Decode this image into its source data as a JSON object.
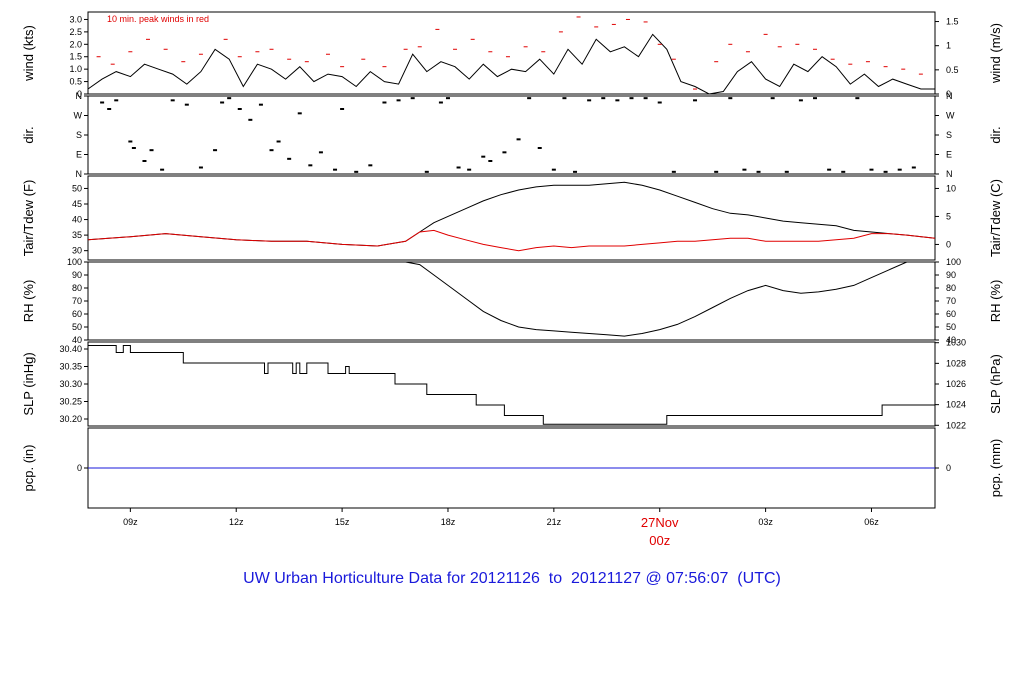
{
  "title": "UW Urban Horticulture Data for 20121126  to  20121127 @ 07:56:07  (UTC)",
  "colors": {
    "title": "#1a1adb",
    "main": "#000000",
    "peak": "#e00000",
    "dew": "#e00000",
    "precip": "#1a1adb",
    "date": "#e00000"
  },
  "chart_data": {
    "type": "line",
    "x_axis": {
      "start_hour": 7.8,
      "end_hour": 31.8,
      "tick_labels": [
        "09z",
        "12z",
        "15z",
        "18z",
        "21z",
        "27Nov",
        "03z",
        "06z"
      ],
      "tick_hours": [
        9,
        12,
        15,
        18,
        21,
        24,
        27,
        30
      ],
      "date_label": "27Nov",
      "date_sublabel": "00z"
    },
    "panels": [
      {
        "id": "wind",
        "ylabel_left": "wind (kts)",
        "ylabel_right": "wind (m/s)",
        "ylim": [
          0,
          3.3
        ],
        "left_ticks": [
          "0",
          "0.5",
          "1.0",
          "1.5",
          "2.0",
          "2.5",
          "3.0"
        ],
        "left_tick_values": [
          0,
          0.5,
          1.0,
          1.5,
          2.0,
          2.5,
          3.0
        ],
        "right_ticks": [
          "0",
          "0.5",
          "1",
          "1.5"
        ],
        "right_tick_values_kts": [
          0,
          0.972,
          1.944,
          2.916
        ],
        "annotation": "10 min. peak winds in red",
        "series": [
          {
            "name": "wind",
            "x": [
              7.8,
              8.2,
              8.6,
              9.0,
              9.4,
              9.8,
              10.2,
              10.6,
              11.0,
              11.4,
              11.8,
              12.2,
              12.6,
              13.0,
              13.4,
              13.8,
              14.2,
              14.6,
              15.0,
              15.4,
              15.8,
              16.2,
              16.6,
              17.0,
              17.4,
              17.8,
              18.2,
              18.6,
              19.0,
              19.4,
              19.8,
              20.2,
              20.6,
              21.0,
              21.4,
              21.8,
              22.2,
              22.6,
              23.0,
              23.4,
              23.8,
              24.2,
              24.6,
              25.0,
              25.4,
              25.8,
              26.2,
              26.6,
              27.0,
              27.4,
              27.8,
              28.2,
              28.6,
              29.0,
              29.4,
              29.8,
              30.2,
              30.6,
              31.0,
              31.4,
              31.8
            ],
            "y": [
              0.2,
              0.6,
              0.9,
              0.7,
              1.2,
              1.0,
              0.8,
              0.4,
              0.9,
              1.8,
              1.4,
              0.3,
              1.2,
              1.0,
              0.6,
              1.1,
              0.5,
              0.8,
              0.7,
              0.3,
              0.9,
              0.5,
              0.4,
              1.6,
              0.9,
              1.3,
              1.1,
              0.6,
              1.2,
              0.7,
              1.0,
              0.9,
              1.4,
              0.8,
              1.8,
              1.2,
              2.2,
              1.7,
              1.9,
              1.5,
              2.4,
              1.8,
              0.5,
              0.3,
              0.0,
              0.1,
              0.9,
              1.3,
              0.6,
              0.3,
              1.2,
              0.9,
              1.5,
              1.1,
              0.4,
              0.8,
              0.3,
              0.6,
              0.4,
              0.2,
              0.2
            ]
          },
          {
            "name": "peak",
            "x": [
              8.1,
              8.5,
              9.0,
              9.5,
              10.0,
              10.5,
              11.0,
              11.7,
              12.1,
              12.6,
              13.0,
              13.5,
              14.0,
              14.6,
              15.0,
              15.6,
              16.2,
              16.8,
              17.2,
              17.7,
              18.2,
              18.7,
              19.2,
              19.7,
              20.2,
              20.7,
              21.2,
              21.7,
              22.2,
              22.7,
              23.1,
              23.6,
              24.0,
              24.4,
              25.0,
              25.6,
              26.0,
              26.5,
              27.0,
              27.4,
              27.9,
              28.4,
              28.9,
              29.4,
              29.9,
              30.4,
              30.9,
              31.4
            ],
            "y": [
              1.5,
              1.2,
              1.7,
              2.2,
              1.8,
              1.3,
              1.6,
              2.2,
              1.5,
              1.7,
              1.8,
              1.4,
              1.3,
              1.6,
              1.1,
              1.4,
              1.1,
              1.8,
              1.9,
              2.6,
              1.8,
              2.2,
              1.7,
              1.5,
              1.9,
              1.7,
              2.5,
              3.1,
              2.7,
              2.8,
              3.0,
              2.9,
              2.0,
              1.4,
              0.2,
              1.3,
              2.0,
              1.7,
              2.4,
              1.9,
              2.0,
              1.8,
              1.4,
              1.2,
              1.3,
              1.1,
              1.0,
              0.8
            ]
          }
        ]
      },
      {
        "id": "dir",
        "ylabel_left": "dir.",
        "ylabel_right": "dir.",
        "ylim": [
          0,
          360
        ],
        "left_ticks": [
          "N",
          "E",
          "S",
          "W",
          "N"
        ],
        "right_ticks": [
          "N",
          "E",
          "S",
          "W",
          "N"
        ],
        "tick_values": [
          0,
          90,
          180,
          270,
          360
        ],
        "series": [
          {
            "name": "direction",
            "x": [
              8.2,
              8.4,
              8.6,
              9.0,
              9.1,
              9.4,
              9.6,
              9.9,
              10.2,
              10.6,
              11.0,
              11.4,
              11.6,
              11.8,
              12.1,
              12.4,
              12.7,
              13.0,
              13.2,
              13.5,
              13.8,
              14.1,
              14.4,
              14.8,
              15.0,
              15.4,
              15.8,
              16.2,
              16.6,
              17.0,
              17.4,
              17.8,
              18.0,
              18.3,
              18.6,
              19.0,
              19.2,
              19.6,
              20.0,
              20.3,
              20.6,
              21.0,
              21.3,
              21.6,
              22.0,
              22.4,
              22.8,
              23.2,
              23.6,
              24.0,
              24.4,
              25.0,
              25.6,
              26.0,
              26.4,
              26.8,
              27.2,
              27.6,
              28.0,
              28.4,
              28.8,
              29.2,
              29.6,
              30.0,
              30.4,
              30.8,
              31.2
            ],
            "y": [
              330,
              300,
              340,
              150,
              120,
              60,
              110,
              20,
              340,
              320,
              30,
              110,
              330,
              350,
              300,
              250,
              320,
              110,
              150,
              70,
              280,
              40,
              100,
              20,
              300,
              10,
              40,
              330,
              340,
              350,
              10,
              330,
              350,
              30,
              20,
              80,
              60,
              100,
              160,
              350,
              120,
              20,
              350,
              10,
              340,
              350,
              340,
              350,
              350,
              330,
              10,
              340,
              10,
              350,
              20,
              10,
              350,
              10,
              340,
              350,
              20,
              10,
              350,
              20,
              10,
              20,
              30
            ]
          }
        ]
      },
      {
        "id": "temp",
        "ylabel_left": "Tair/Tdew (F)",
        "ylabel_right": "Tair/Tdew (C)",
        "ylim": [
          27,
          54
        ],
        "left_ticks": [
          "30",
          "35",
          "40",
          "45",
          "50"
        ],
        "left_tick_values": [
          30,
          35,
          40,
          45,
          50
        ],
        "right_ticks": [
          "0",
          "5",
          "10"
        ],
        "right_tick_values_f": [
          32,
          41,
          50
        ],
        "series": [
          {
            "name": "Tair",
            "x": [
              7.8,
              9.0,
              10.0,
              11.0,
              12.0,
              13.0,
              14.0,
              15.0,
              16.0,
              16.8,
              17.2,
              17.6,
              18.0,
              18.5,
              19.0,
              19.5,
              20.0,
              20.5,
              21.0,
              21.5,
              22.0,
              22.5,
              23.0,
              23.5,
              24.0,
              24.5,
              25.0,
              25.5,
              26.0,
              26.5,
              27.0,
              27.5,
              28.0,
              28.5,
              29.0,
              29.5,
              30.0,
              30.5,
              31.0,
              31.8
            ],
            "y": [
              33.5,
              34.5,
              35.5,
              34.5,
              33.5,
              33.0,
              33.0,
              32.0,
              31.5,
              33.0,
              36.0,
              39.0,
              41.0,
              43.5,
              46.0,
              48.0,
              49.5,
              50.5,
              51.0,
              51.0,
              51.0,
              51.5,
              52.0,
              51.0,
              49.5,
              47.5,
              45.5,
              43.5,
              42.0,
              41.5,
              40.5,
              39.5,
              39.0,
              38.5,
              38.0,
              36.5,
              36.0,
              35.5,
              35.0,
              34.0
            ]
          },
          {
            "name": "Tdew",
            "x": [
              7.8,
              9.0,
              10.0,
              11.0,
              12.0,
              13.0,
              14.0,
              15.0,
              16.0,
              16.8,
              17.2,
              17.6,
              18.0,
              18.5,
              19.0,
              19.5,
              20.0,
              20.5,
              21.0,
              21.5,
              22.0,
              22.5,
              23.0,
              23.5,
              24.0,
              24.5,
              25.0,
              25.5,
              26.0,
              26.5,
              27.0,
              27.5,
              28.0,
              28.5,
              29.0,
              29.5,
              30.0,
              30.5,
              31.0,
              31.8
            ],
            "y": [
              33.5,
              34.5,
              35.5,
              34.5,
              33.5,
              33.0,
              33.0,
              32.0,
              31.5,
              33.0,
              36.0,
              36.5,
              35.0,
              33.5,
              32.0,
              31.0,
              30.0,
              31.0,
              31.5,
              31.0,
              31.5,
              31.5,
              31.5,
              32.0,
              32.5,
              33.0,
              33.0,
              33.5,
              34.0,
              34.0,
              33.0,
              33.0,
              33.0,
              33.0,
              33.5,
              34.0,
              35.5,
              35.5,
              35.0,
              34.0
            ]
          }
        ]
      },
      {
        "id": "rh",
        "ylabel_left": "RH (%)",
        "ylabel_right": "RH (%)",
        "ylim": [
          40,
          100
        ],
        "left_ticks": [
          "40",
          "50",
          "60",
          "70",
          "80",
          "90",
          "100"
        ],
        "right_ticks": [
          "40",
          "50",
          "60",
          "70",
          "80",
          "90",
          "100"
        ],
        "tick_values": [
          40,
          50,
          60,
          70,
          80,
          90,
          100
        ],
        "series": [
          {
            "name": "RH",
            "x": [
              16.8,
              17.2,
              17.6,
              18.0,
              18.5,
              19.0,
              19.5,
              20.0,
              20.5,
              21.0,
              21.5,
              22.0,
              22.5,
              23.0,
              23.5,
              24.0,
              24.5,
              25.0,
              25.5,
              26.0,
              26.5,
              27.0,
              27.5,
              28.0,
              28.5,
              29.0,
              29.5,
              30.0,
              30.5,
              31.0,
              31.8
            ],
            "y": [
              100,
              98,
              90,
              82,
              72,
              62,
              55,
              50,
              48,
              47,
              46,
              45,
              44,
              43,
              45,
              48,
              52,
              58,
              65,
              72,
              78,
              82,
              78,
              76,
              77,
              79,
              82,
              88,
              94,
              100,
              100
            ]
          }
        ]
      },
      {
        "id": "slp",
        "ylabel_left": "SLP (inHg)",
        "ylabel_right": "SLP (hPa)",
        "ylim": [
          30.18,
          30.42
        ],
        "left_ticks": [
          "30.20",
          "30.25",
          "30.30",
          "30.35",
          "30.40"
        ],
        "left_tick_values": [
          30.2,
          30.25,
          30.3,
          30.35,
          30.4
        ],
        "right_ticks": [
          "1022",
          "1024",
          "1026",
          "1028",
          "1030"
        ],
        "right_tick_values_inhg": [
          30.182,
          30.241,
          30.3,
          30.359,
          30.418
        ],
        "series": [
          {
            "name": "SLP",
            "x": [
              7.8,
              8.6,
              8.6,
              8.8,
              8.8,
              9.0,
              9.0,
              9.4,
              9.4,
              10.5,
              10.5,
              12.8,
              12.8,
              12.9,
              12.9,
              13.6,
              13.6,
              13.7,
              13.7,
              13.8,
              13.8,
              14.0,
              14.0,
              14.6,
              14.6,
              15.1,
              15.1,
              15.2,
              15.2,
              16.5,
              16.5,
              17.4,
              17.4,
              18.8,
              18.8,
              19.6,
              19.6,
              20.7,
              20.7,
              24.2,
              24.2,
              24.3,
              24.3,
              30.3,
              30.3,
              31.8
            ],
            "y": [
              30.41,
              30.41,
              30.39,
              30.39,
              30.41,
              30.41,
              30.39,
              30.39,
              30.39,
              30.39,
              30.36,
              30.36,
              30.33,
              30.33,
              30.36,
              30.36,
              30.33,
              30.33,
              30.36,
              30.36,
              30.33,
              30.33,
              30.36,
              30.36,
              30.33,
              30.33,
              30.35,
              30.35,
              30.33,
              30.33,
              30.3,
              30.3,
              30.27,
              30.27,
              30.24,
              30.24,
              30.21,
              30.21,
              30.185,
              30.185,
              30.21,
              30.21,
              30.21,
              30.21,
              30.24,
              30.24
            ]
          }
        ]
      },
      {
        "id": "pcp",
        "ylabel_left": "pcp. (in)",
        "ylabel_right": "pcp. (mm)",
        "ylim": [
          -1,
          1
        ],
        "left_ticks": [
          "0"
        ],
        "right_ticks": [
          "0"
        ],
        "tick_values": [
          0
        ],
        "series": [
          {
            "name": "precip",
            "x": [
              7.8,
              31.8
            ],
            "y": [
              0,
              0
            ]
          }
        ]
      }
    ]
  }
}
